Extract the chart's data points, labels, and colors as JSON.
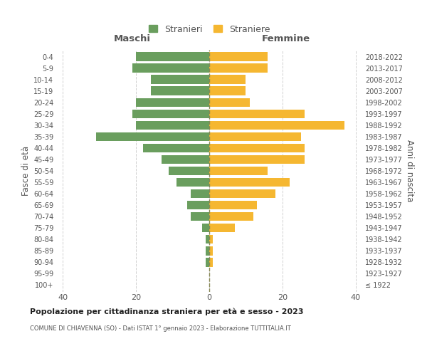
{
  "age_groups": [
    "100+",
    "95-99",
    "90-94",
    "85-89",
    "80-84",
    "75-79",
    "70-74",
    "65-69",
    "60-64",
    "55-59",
    "50-54",
    "45-49",
    "40-44",
    "35-39",
    "30-34",
    "25-29",
    "20-24",
    "15-19",
    "10-14",
    "5-9",
    "0-4"
  ],
  "birth_years": [
    "≤ 1922",
    "1923-1927",
    "1928-1932",
    "1933-1937",
    "1938-1942",
    "1943-1947",
    "1948-1952",
    "1953-1957",
    "1958-1962",
    "1963-1967",
    "1968-1972",
    "1973-1977",
    "1978-1982",
    "1983-1987",
    "1988-1992",
    "1993-1997",
    "1998-2002",
    "2003-2007",
    "2008-2012",
    "2013-2017",
    "2018-2022"
  ],
  "maschi": [
    0,
    0,
    1,
    1,
    1,
    2,
    5,
    6,
    5,
    9,
    11,
    13,
    18,
    31,
    20,
    21,
    20,
    16,
    16,
    21,
    20
  ],
  "femmine": [
    0,
    0,
    1,
    1,
    1,
    7,
    12,
    13,
    18,
    22,
    16,
    26,
    26,
    25,
    37,
    26,
    11,
    10,
    10,
    16,
    16
  ],
  "maschi_color": "#6a9e5e",
  "femmine_color": "#f5b731",
  "background_color": "#ffffff",
  "title": "Popolazione per cittadinanza straniera per età e sesso - 2023",
  "subtitle": "COMUNE DI CHIAVENNA (SO) - Dati ISTAT 1° gennaio 2023 - Elaborazione TUTTITALIA.IT",
  "ylabel_left": "Fasce di età",
  "ylabel_right": "Anni di nascita",
  "header_left": "Maschi",
  "header_right": "Femmine",
  "legend_stranieri": "Stranieri",
  "legend_straniere": "Straniere",
  "xlim": [
    -42,
    42
  ],
  "xticks": [
    -40,
    -20,
    0,
    20,
    40
  ],
  "grid_color": "#d0d0d0",
  "center_line_color": "#888855",
  "text_color": "#555555",
  "title_color": "#222222"
}
